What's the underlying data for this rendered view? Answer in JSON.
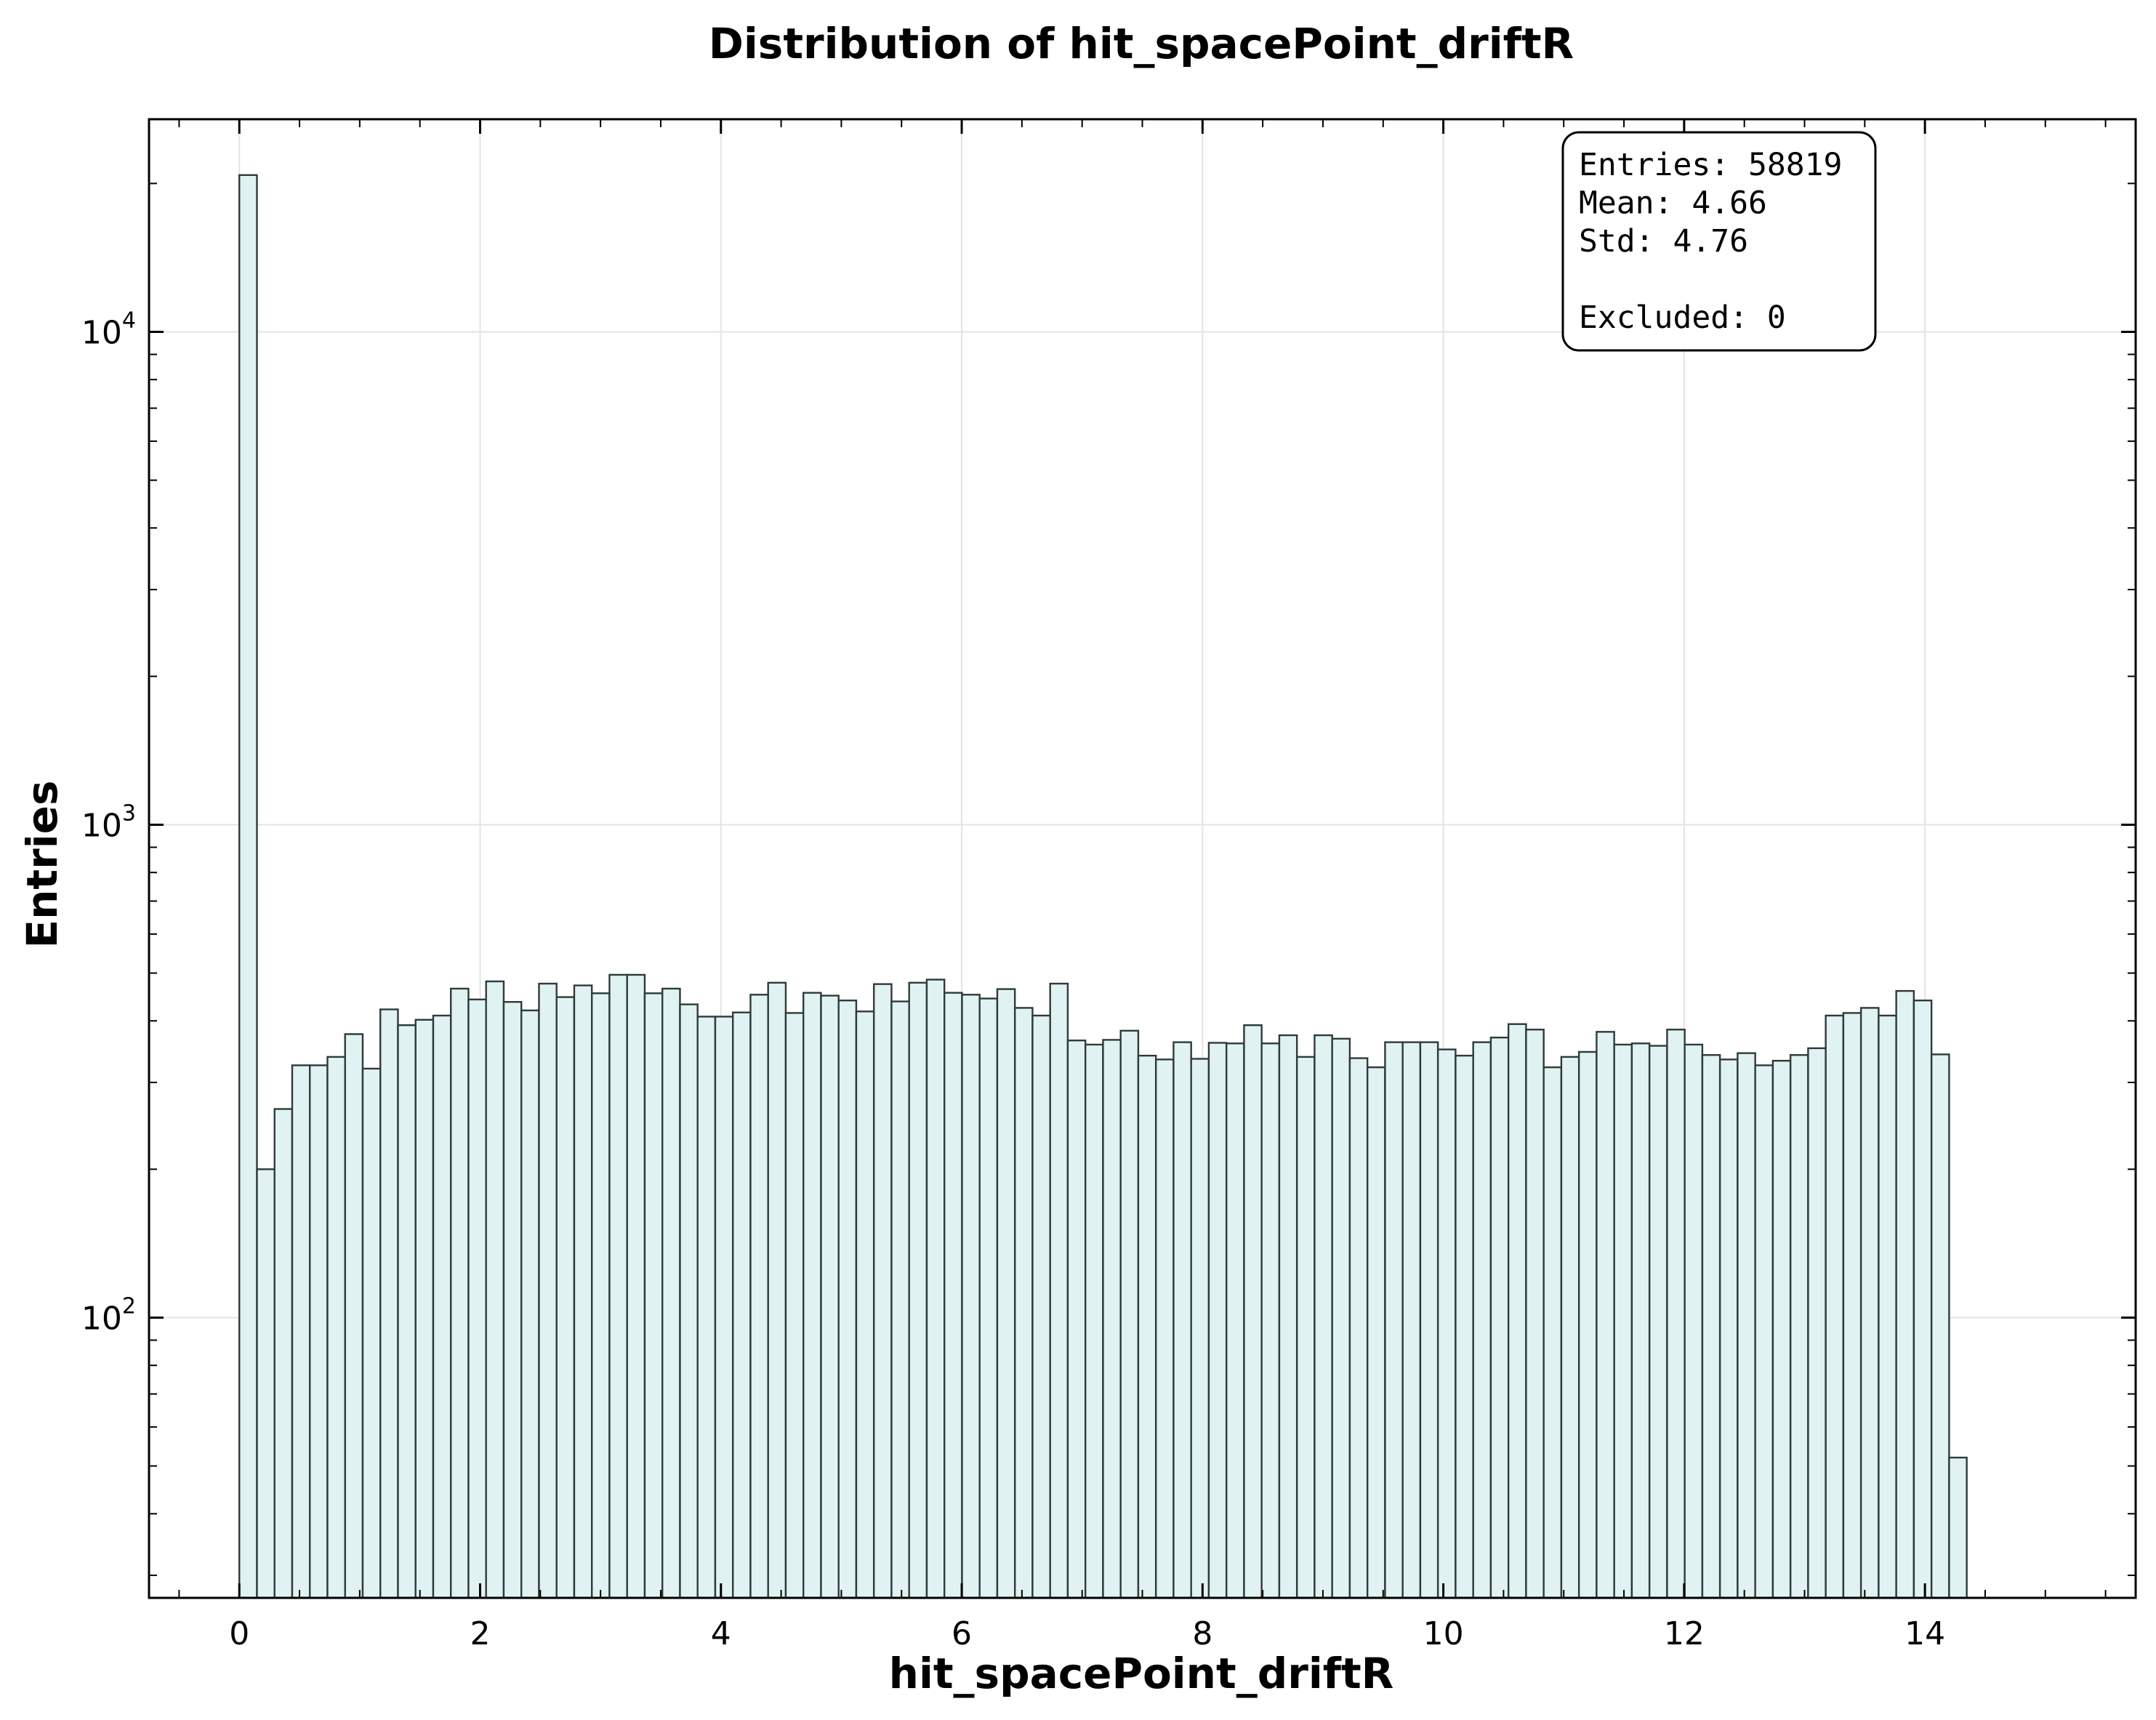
{
  "chart_data": {
    "type": "bar",
    "title": "Distribution of hit_spacePoint_driftR",
    "xlabel": "hit_spacePoint_driftR",
    "ylabel": "Entries",
    "xlim": [
      -0.75,
      15.75
    ],
    "ylim": [
      27,
      27000
    ],
    "xscale": "linear",
    "yscale": "log",
    "grid": true,
    "bar_fill_color": "#e0f2f2",
    "bar_edge_color": "#2f3a3a",
    "bin_start": 0.0,
    "bin_width": 0.1464,
    "values": [
      20800,
      200,
      265,
      325,
      325,
      338,
      376,
      320,
      422,
      392,
      402,
      410,
      465,
      442,
      481,
      437,
      420,
      476,
      447,
      472,
      455,
      496,
      496,
      455,
      465,
      432,
      408,
      408,
      416,
      452,
      478,
      415,
      456,
      450,
      440,
      418,
      475,
      438,
      478,
      485,
      456,
      452,
      444,
      464,
      425,
      410,
      476,
      365,
      358,
      366,
      382,
      340,
      334,
      362,
      335,
      361,
      360,
      392,
      360,
      374,
      338,
      374,
      368,
      336,
      322,
      362,
      362,
      362,
      350,
      340,
      362,
      370,
      394,
      384,
      322,
      338,
      346,
      380,
      358,
      360,
      356,
      384,
      358,
      341,
      334,
      344,
      325,
      332,
      341,
      352,
      410,
      415,
      425,
      410,
      460,
      440,
      342,
      52
    ],
    "x_ticks": [
      "0",
      "2",
      "4",
      "6",
      "8",
      "10",
      "12",
      "14"
    ],
    "y_ticks": [
      {
        "value": 100,
        "base": "10",
        "exp": "2"
      },
      {
        "value": 1000,
        "base": "10",
        "exp": "3"
      },
      {
        "value": 10000,
        "base": "10",
        "exp": "4"
      }
    ],
    "stats_box": {
      "lines": [
        "Entries: 58819",
        "Mean: 4.66",
        "Std: 4.76",
        "",
        "Excluded: 0"
      ],
      "placement": "top-right"
    }
  }
}
